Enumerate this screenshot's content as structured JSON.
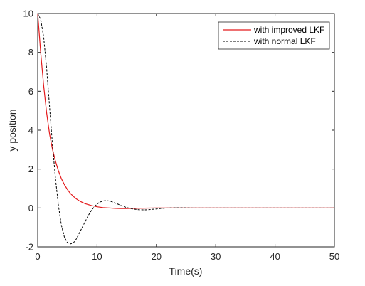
{
  "chart_data": {
    "type": "line",
    "title": "",
    "xlabel": "Time(s)",
    "ylabel": "y position",
    "xlim": [
      0,
      50
    ],
    "ylim": [
      -2,
      10
    ],
    "xticks": [
      0,
      10,
      20,
      30,
      40,
      50
    ],
    "yticks": [
      -2,
      0,
      2,
      4,
      6,
      8,
      10
    ],
    "grid": false,
    "legend_position": "top-right",
    "series": [
      {
        "name": "with improved LKF",
        "color": "#e41a1c",
        "style": "solid",
        "x": [
          0,
          0.5,
          1,
          1.5,
          2,
          2.5,
          3,
          3.5,
          4,
          4.5,
          5,
          5.5,
          6,
          6.5,
          7,
          7.5,
          8,
          9,
          10,
          11,
          12,
          13,
          14,
          15,
          16,
          18,
          20,
          25,
          30,
          35,
          40,
          45,
          50
        ],
        "values": [
          10,
          8.0,
          6.3,
          4.9,
          3.8,
          3.0,
          2.4,
          1.9,
          1.5,
          1.2,
          0.95,
          0.75,
          0.6,
          0.47,
          0.37,
          0.29,
          0.22,
          0.13,
          0.06,
          0.02,
          0,
          -0.02,
          -0.03,
          -0.03,
          -0.02,
          -0.01,
          0,
          0,
          0,
          0,
          0,
          0,
          0
        ]
      },
      {
        "name": "with normal LKF",
        "color": "#000000",
        "style": "dashed",
        "x": [
          0,
          0.5,
          1,
          1.5,
          2,
          2.5,
          3,
          3.5,
          4,
          4.5,
          5,
          5.5,
          6,
          6.5,
          7,
          7.5,
          8,
          8.5,
          9,
          9.5,
          10,
          10.5,
          11,
          11.5,
          12,
          12.5,
          13,
          13.5,
          14,
          14.5,
          15,
          16,
          17,
          18,
          19,
          20,
          21,
          22,
          24,
          26,
          30,
          35,
          40,
          45,
          50
        ],
        "values": [
          10,
          9.7,
          8.8,
          7.2,
          5.2,
          3.2,
          1.5,
          0.1,
          -0.9,
          -1.5,
          -1.78,
          -1.85,
          -1.8,
          -1.6,
          -1.3,
          -1.0,
          -0.7,
          -0.4,
          -0.15,
          0.05,
          0.2,
          0.3,
          0.36,
          0.38,
          0.36,
          0.32,
          0.26,
          0.2,
          0.13,
          0.07,
          0.02,
          -0.05,
          -0.09,
          -0.1,
          -0.08,
          -0.05,
          -0.02,
          0,
          0.01,
          0,
          0,
          0,
          0,
          0,
          0
        ]
      }
    ]
  }
}
